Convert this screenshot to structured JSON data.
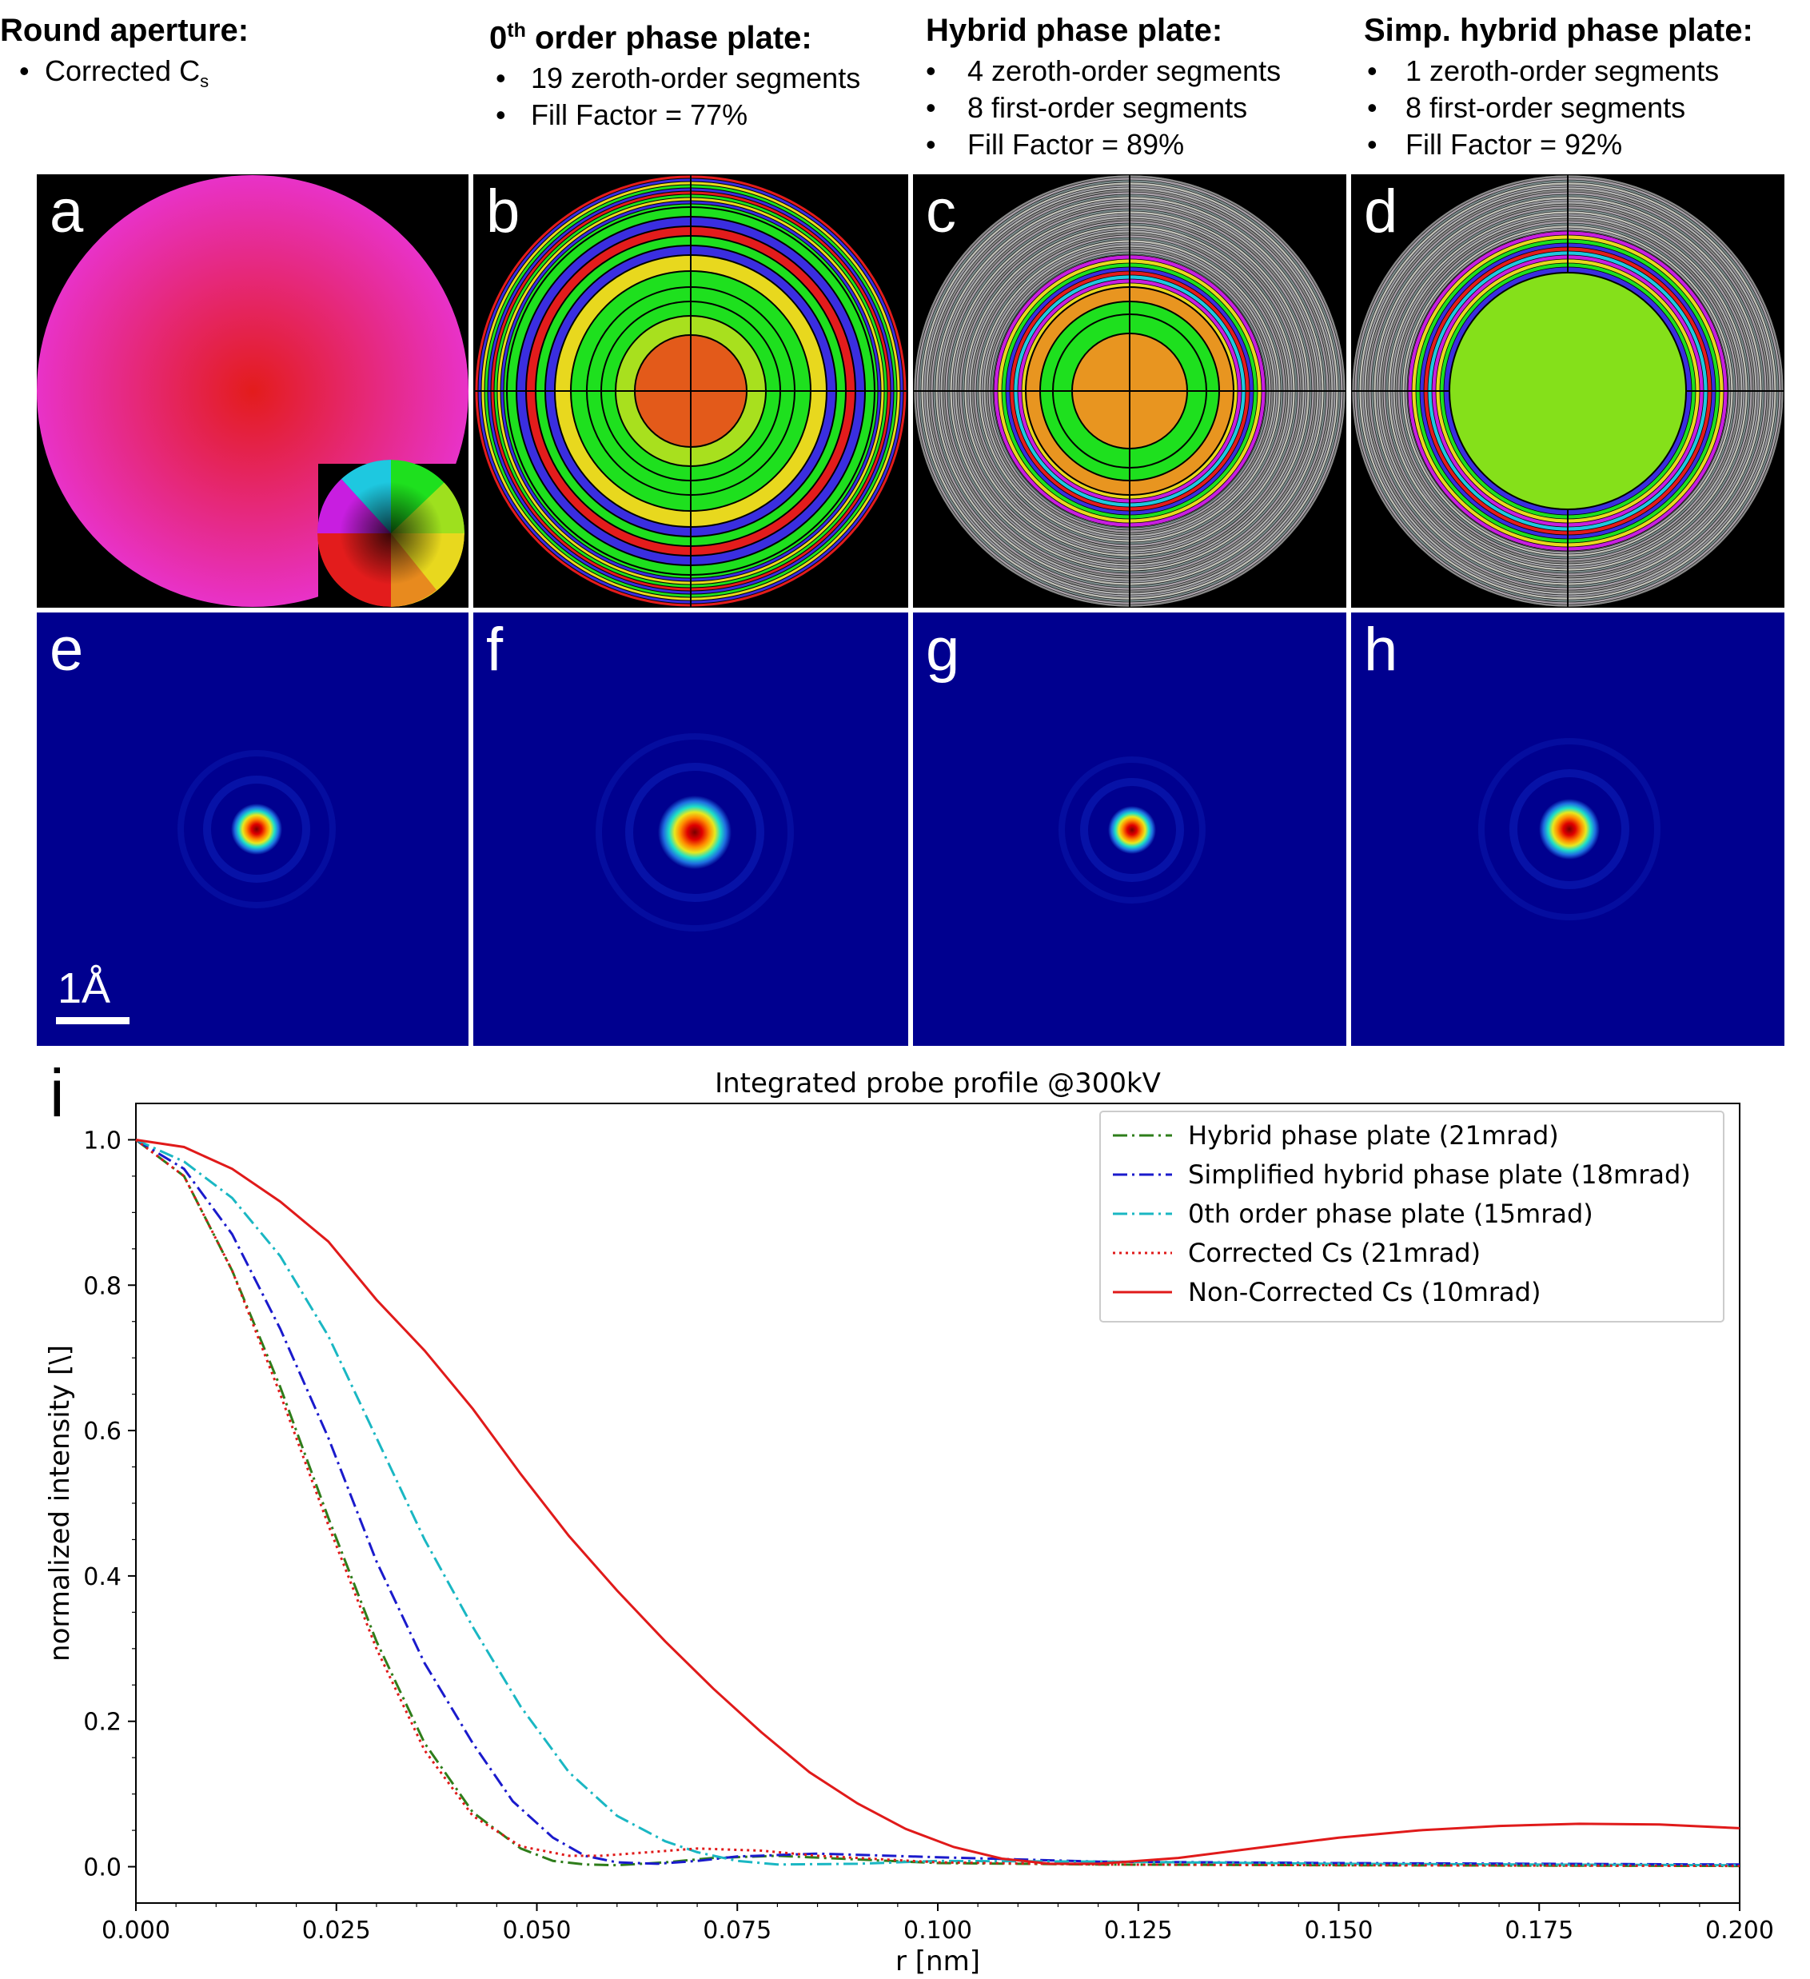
{
  "headers": [
    {
      "title": "Round aperture:",
      "items": [
        {
          "text": "Corrected C",
          "sub": "s"
        }
      ]
    },
    {
      "title_prefix": "0",
      "title_sup": "th",
      "title": " order phase plate:",
      "items": [
        {
          "text": "19 zeroth-order segments"
        },
        {
          "text": "Fill Factor = 77%"
        }
      ]
    },
    {
      "title": "Hybrid phase plate:",
      "items": [
        {
          "text": "4 zeroth-order segments"
        },
        {
          "text": "8 first-order segments"
        },
        {
          "text": "Fill Factor = 89%"
        }
      ]
    },
    {
      "title": "Simp. hybrid phase plate:",
      "items": [
        {
          "text": "1 zeroth-order segments"
        },
        {
          "text": "8 first-order segments"
        },
        {
          "text": "Fill Factor = 92%"
        }
      ]
    }
  ],
  "bullet": "•",
  "panel_labels": {
    "a": "a",
    "b": "b",
    "c": "c",
    "d": "d",
    "e": "e",
    "f": "f",
    "g": "g",
    "h": "h",
    "i": "i"
  },
  "scale_bar": "1Å",
  "colors": {
    "background_dark": "#000000",
    "probe_background": "#00008f",
    "phase_center_a": "#e31c1c",
    "phase_edge_a": "#e832c8",
    "center_b": "#e35a1a",
    "center_c": "#e89520",
    "center_d": "#85e01a"
  },
  "chart_data": {
    "type": "line",
    "title": "Integrated probe profile @300kV",
    "xlabel": "r [nm]",
    "ylabel": "normalized intensity [\\]",
    "xlim": [
      0,
      0.2
    ],
    "ylim": [
      -0.05,
      1.05
    ],
    "xticks": [
      "0.000",
      "0.025",
      "0.050",
      "0.075",
      "0.100",
      "0.125",
      "0.150",
      "0.175",
      "0.200"
    ],
    "xtick_values": [
      0,
      0.025,
      0.05,
      0.075,
      0.1,
      0.125,
      0.15,
      0.175,
      0.2
    ],
    "yticks": [
      "0.0",
      "0.2",
      "0.4",
      "0.6",
      "0.8",
      "1.0"
    ],
    "ytick_values": [
      0,
      0.2,
      0.4,
      0.6,
      0.8,
      1.0
    ],
    "legend_position": "top-right",
    "series": [
      {
        "name": "Hybrid phase plate (21mrad)",
        "color": "#2e7d1a",
        "style": "dashdot",
        "x": [
          0,
          0.006,
          0.012,
          0.018,
          0.024,
          0.03,
          0.036,
          0.042,
          0.048,
          0.052,
          0.056,
          0.06,
          0.066,
          0.072,
          0.08,
          0.09,
          0.1,
          0.12,
          0.15,
          0.2
        ],
        "y": [
          1.0,
          0.95,
          0.82,
          0.66,
          0.48,
          0.31,
          0.17,
          0.075,
          0.025,
          0.008,
          0.003,
          0.002,
          0.006,
          0.012,
          0.015,
          0.01,
          0.005,
          0.003,
          0.002,
          0.001
        ]
      },
      {
        "name": "Simplified hybrid phase plate (18mrad)",
        "color": "#1a1acc",
        "style": "dashdot",
        "x": [
          0,
          0.006,
          0.012,
          0.018,
          0.024,
          0.03,
          0.036,
          0.042,
          0.047,
          0.052,
          0.056,
          0.06,
          0.065,
          0.07,
          0.075,
          0.085,
          0.1,
          0.12,
          0.15,
          0.2
        ],
        "y": [
          1.0,
          0.96,
          0.87,
          0.74,
          0.59,
          0.42,
          0.28,
          0.17,
          0.09,
          0.04,
          0.015,
          0.006,
          0.004,
          0.008,
          0.014,
          0.018,
          0.013,
          0.007,
          0.005,
          0.003
        ]
      },
      {
        "name": "0th order phase plate (15mrad)",
        "color": "#1ab7c3",
        "style": "dashdot",
        "x": [
          0,
          0.006,
          0.012,
          0.018,
          0.024,
          0.03,
          0.036,
          0.042,
          0.048,
          0.054,
          0.06,
          0.066,
          0.07,
          0.075,
          0.08,
          0.09,
          0.1,
          0.12,
          0.15,
          0.2
        ],
        "y": [
          1.0,
          0.97,
          0.92,
          0.84,
          0.73,
          0.59,
          0.45,
          0.33,
          0.22,
          0.13,
          0.07,
          0.035,
          0.02,
          0.008,
          0.003,
          0.004,
          0.008,
          0.007,
          0.004,
          0.002
        ]
      },
      {
        "name": "Corrected Cs (21mrad)",
        "color": "#e01a1a",
        "style": "dotted",
        "x": [
          0,
          0.006,
          0.012,
          0.018,
          0.024,
          0.03,
          0.036,
          0.042,
          0.048,
          0.054,
          0.058,
          0.064,
          0.07,
          0.078,
          0.085,
          0.1,
          0.12,
          0.15,
          0.2
        ],
        "y": [
          1.0,
          0.95,
          0.82,
          0.65,
          0.47,
          0.3,
          0.16,
          0.07,
          0.028,
          0.015,
          0.015,
          0.02,
          0.025,
          0.022,
          0.015,
          0.006,
          0.003,
          0.002,
          0.001
        ]
      },
      {
        "name": "Non-Corrected Cs (10mrad)",
        "color": "#e01a1a",
        "style": "solid",
        "x": [
          0,
          0.006,
          0.012,
          0.018,
          0.024,
          0.03,
          0.036,
          0.042,
          0.048,
          0.054,
          0.06,
          0.066,
          0.072,
          0.078,
          0.084,
          0.09,
          0.096,
          0.102,
          0.108,
          0.114,
          0.12,
          0.13,
          0.14,
          0.15,
          0.16,
          0.17,
          0.18,
          0.19,
          0.2
        ],
        "y": [
          1.0,
          0.99,
          0.96,
          0.915,
          0.86,
          0.78,
          0.71,
          0.63,
          0.54,
          0.455,
          0.38,
          0.31,
          0.245,
          0.185,
          0.13,
          0.087,
          0.052,
          0.027,
          0.011,
          0.004,
          0.004,
          0.012,
          0.026,
          0.04,
          0.05,
          0.056,
          0.059,
          0.058,
          0.053
        ]
      }
    ]
  }
}
